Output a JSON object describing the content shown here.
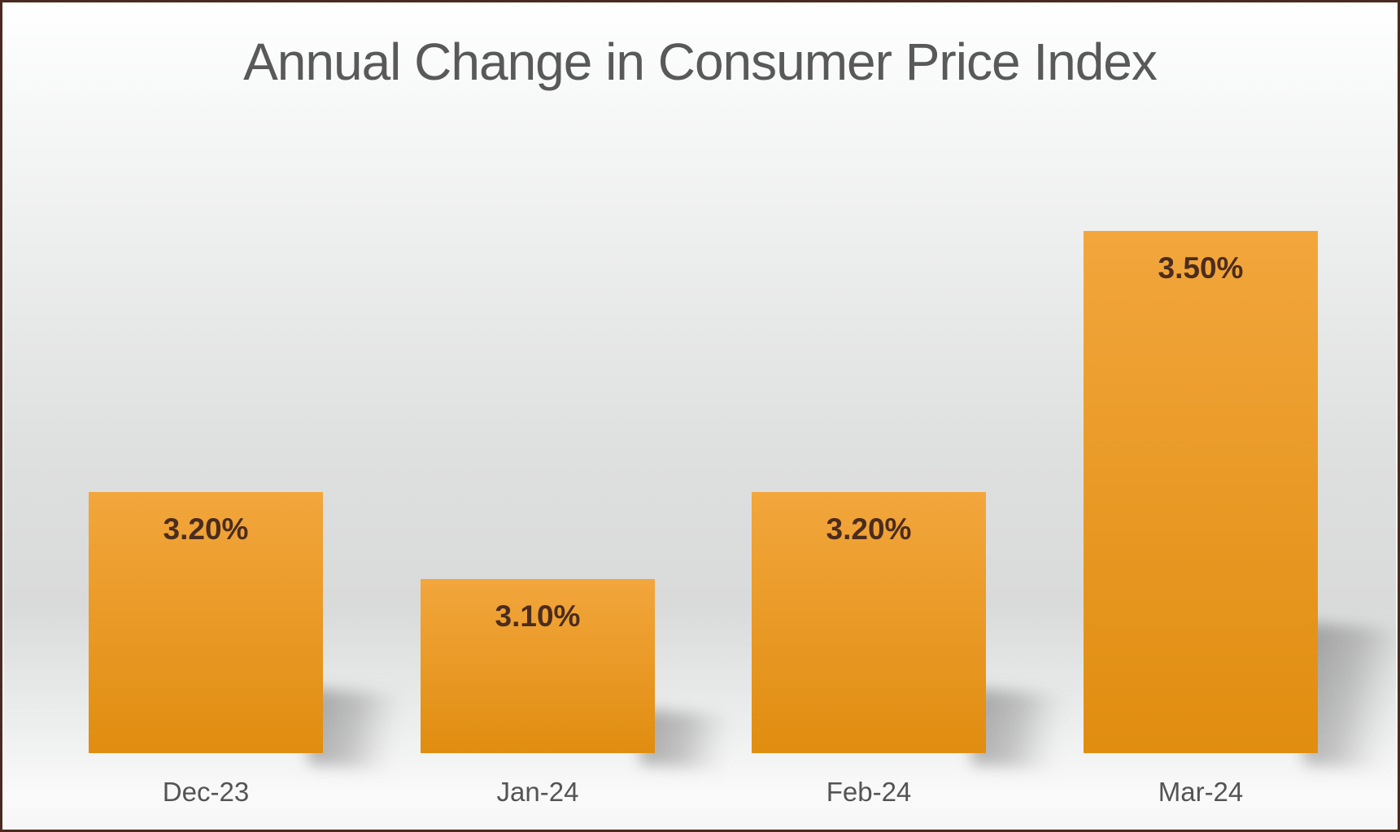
{
  "chart_data": {
    "type": "bar",
    "title": "Annual Change in Consumer Price Index",
    "categories": [
      "Dec-23",
      "Jan-24",
      "Feb-24",
      "Mar-24"
    ],
    "values": [
      3.2,
      3.1,
      3.2,
      3.5
    ],
    "value_labels": [
      "3.20%",
      "3.10%",
      "3.20%",
      "3.50%"
    ],
    "unit": "percent",
    "ylim": [
      2.9,
      3.6
    ],
    "grid": false,
    "legend": "none",
    "y_axis_visible": false,
    "x_axis_labels_visible": true,
    "data_labels_position": "inside-top",
    "colors": {
      "bar_top": "#F2A63C",
      "bar_bottom": "#E08D10",
      "value_label": "#4B2C1D",
      "category_label": "#545454",
      "title": "#595959",
      "frame_border": "#4A2A20",
      "background_mid": "#D9DADA"
    }
  }
}
